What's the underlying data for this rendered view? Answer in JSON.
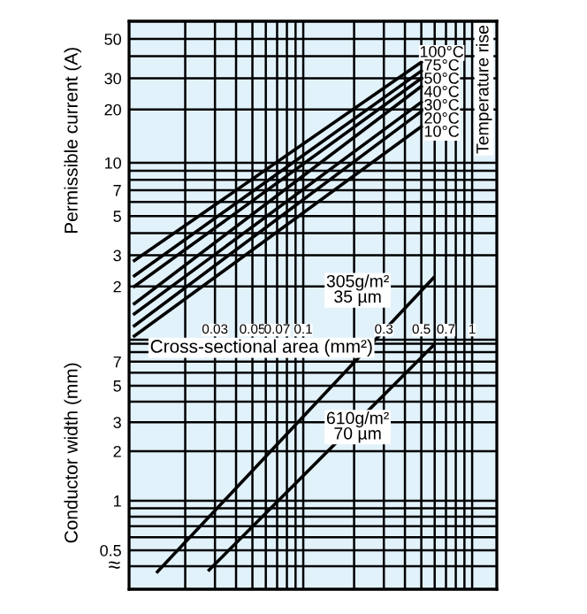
{
  "chart_data": [
    {
      "type": "line",
      "log": "xy",
      "ylabel": "Permissible current (A)",
      "grid": true,
      "tick_labels": "y",
      "xlim": [
        0.0093,
        1.4
      ],
      "xticks": [
        {
          "value": 0.02,
          "label": null
        },
        0.03,
        {
          "value": 0.04,
          "label": null
        },
        0.05,
        {
          "value": 0.06,
          "label": null
        },
        0.07,
        {
          "value": 0.08,
          "label": null
        },
        {
          "value": 0.09,
          "label": null
        },
        0.1,
        {
          "value": 0.2,
          "label": null
        },
        0.3,
        {
          "value": 0.4,
          "label": null
        },
        0.5,
        {
          "value": 0.6,
          "label": null
        },
        0.7,
        {
          "value": 0.8,
          "label": null
        },
        {
          "value": 0.9,
          "label": null
        },
        1
      ],
      "ylim": [
        0.039,
        63
      ],
      "yticks": [
        {
          "value": 1,
          "label": null
        },
        2,
        3,
        {
          "value": 4,
          "label": null
        },
        5,
        {
          "value": 6,
          "label": null
        },
        7,
        {
          "value": 8,
          "label": null
        },
        {
          "value": 9,
          "label": null
        },
        10,
        20,
        30,
        {
          "value": 40,
          "label": null
        },
        50
      ],
      "annotations": [
        "Temperature rise"
      ],
      "series": [
        {
          "name": "100°C",
          "color": "#000000",
          "x": [
            0.01,
            0.5
          ],
          "values": [
            2.8,
            37
          ]
        },
        {
          "name": "75°C",
          "color": "#000000",
          "x": [
            0.01,
            0.5
          ],
          "values": [
            2.3,
            33
          ]
        },
        {
          "name": "50°C",
          "color": "#000000",
          "x": [
            0.01,
            0.5
          ],
          "values": [
            2.0,
            30
          ]
        },
        {
          "name": "40°C",
          "color": "#000000",
          "x": [
            0.01,
            0.5
          ],
          "values": [
            1.6,
            27
          ]
        },
        {
          "name": "30°C",
          "color": "#000000",
          "x": [
            0.01,
            0.5
          ],
          "values": [
            1.4,
            22
          ]
        },
        {
          "name": "20°C",
          "color": "#000000",
          "x": [
            0.01,
            0.5
          ],
          "values": [
            1.2,
            19.5
          ]
        },
        {
          "name": "10°C",
          "color": "#000000",
          "x": [
            0.01,
            0.5
          ],
          "values": [
            1.05,
            16
          ]
        }
      ]
    },
    {
      "type": "line",
      "log": "xy",
      "xlabel": "Cross-sectional area (mm²)",
      "ylabel": "Conductor width (mm)",
      "grid": true,
      "xlim": [
        0.0093,
        1.4
      ],
      "xticks": [
        {
          "value": 0.02,
          "label": null
        },
        0.03,
        {
          "value": 0.04,
          "label": null
        },
        0.05,
        {
          "value": 0.06,
          "label": null
        },
        0.07,
        {
          "value": 0.08,
          "label": null
        },
        {
          "value": 0.09,
          "label": null
        },
        0.1,
        {
          "value": 0.2,
          "label": null
        },
        0.3,
        {
          "value": 0.4,
          "label": null
        },
        0.5,
        {
          "value": 0.6,
          "label": null
        },
        0.7,
        {
          "value": 0.8,
          "label": null
        },
        {
          "value": 0.9,
          "label": null
        },
        1
      ],
      "ylim": [
        0.29,
        820
      ],
      "yticks": [
        {
          "value": 0.4,
          "label": null
        },
        0.5,
        {
          "value": 0.6,
          "label": null
        },
        {
          "value": 0.7,
          "label": null
        },
        {
          "value": 0.8,
          "label": null
        },
        {
          "value": 0.9,
          "label": null
        },
        1,
        2,
        3,
        {
          "value": 4,
          "label": null
        },
        5,
        {
          "value": 6,
          "label": null
        },
        7,
        {
          "value": 8,
          "label": null
        },
        {
          "value": 9,
          "label": null
        }
      ],
      "annotations": [
        "≈"
      ],
      "series": [
        {
          "name": "305g/m²\n35 µm",
          "color": "#000000",
          "x": [
            0.0137,
            0.59
          ],
          "values": [
            0.37,
            22.6
          ]
        },
        {
          "name": "610g/m²\n70 µm",
          "color": "#000000",
          "x": [
            0.0277,
            0.59
          ],
          "values": [
            0.38,
            8.8
          ]
        }
      ]
    }
  ]
}
